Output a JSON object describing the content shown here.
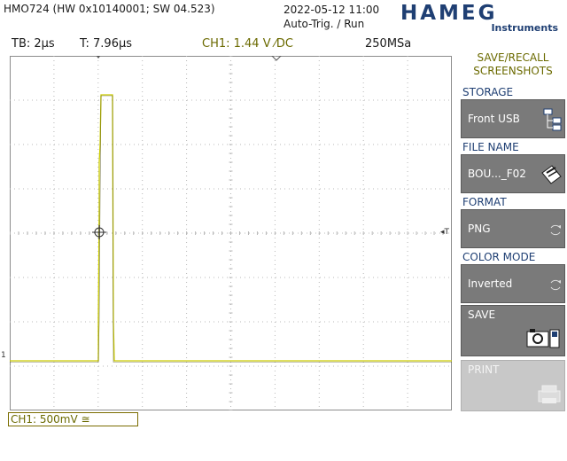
{
  "header": {
    "device": "HMO724 (HW 0x10140001; SW 04.523)",
    "datetime": "2022-05-12 11:00",
    "trigger_mode": "Auto-Trig. / Run",
    "logo": "HAMEG",
    "logo_sub": "Instruments"
  },
  "status_bar": {
    "timebase": "TB: 2µs",
    "trigger_time": "T: 7.96µs",
    "channel": "CH1: 1.44 V ⁄DC",
    "sample_rate": "250MSa"
  },
  "channel_box": {
    "label": "CH1: 500mV ≅"
  },
  "waveform": {
    "ch1_color": "#cccc00",
    "baseline_marker": "1",
    "trigger_marker": "◂T"
  },
  "menu": {
    "title_line1": "SAVE/RECALL",
    "title_line2": "SCREENSHOTS",
    "storage_label": "STORAGE",
    "storage_value": "Front USB",
    "filename_label": "FILE NAME",
    "filename_value": "BOU..._F02",
    "format_label": "FORMAT",
    "format_value": "PNG",
    "colormode_label": "COLOR MODE",
    "colormode_value": "Inverted",
    "save_label": "SAVE",
    "print_label": "PRINT"
  },
  "colors": {
    "accent_blue": "#1f3f73",
    "channel_yellow": "#cccc00",
    "softkey_gray": "#7a7a7a"
  }
}
